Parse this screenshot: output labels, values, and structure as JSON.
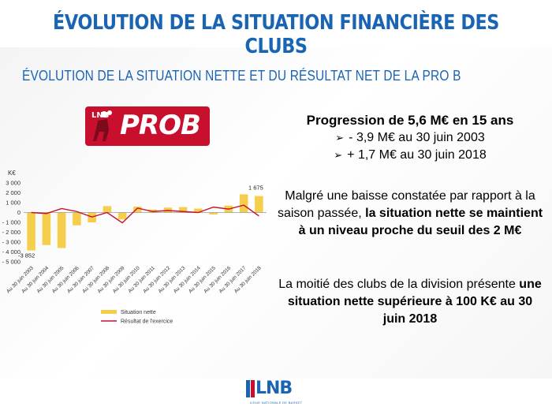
{
  "slide": {
    "title": "ÉVOLUTION DE LA SITUATION FINANCIÈRE DES CLUBS",
    "subtitle": "ÉVOLUTION DE LA SITUATION NETTE ET DU RÉSULTAT NET DE LA PRO B"
  },
  "logo": {
    "small": "LNB",
    "text": "PROB"
  },
  "text_blocks": {
    "headline": "Progression de 5,6 M€ en 15 ans",
    "bullet1": "- 3,9 M€ au 30 juin 2003",
    "bullet2": "+ 1,7 M€ au 30 juin 2018",
    "para1_part1": "Malgré une baisse constatée par rapport à la saison passée, ",
    "para1_bold": "la situation nette se maintient à un niveau proche du seuil des 2 M€",
    "para2_part1": "La moitié des clubs de la division présente ",
    "para2_bold": "une situation nette supérieure à 100 K€ au 30 juin 2018"
  },
  "footer": {
    "logo": "LNB",
    "tagline": "LIGUE NATIONALE DE BASKET"
  },
  "colors": {
    "title_blue": "#1a64b4",
    "bar_yellow": "#f5cf4c",
    "line_red": "#c8102e",
    "logo_red": "#c8102e"
  },
  "chart_data": {
    "type": "bar",
    "ylabel": "K€",
    "ylim": [
      -5000,
      3000
    ],
    "yticks": [
      3000,
      2000,
      1000,
      0,
      -1000,
      -2000,
      -3000,
      -4000,
      -5000
    ],
    "ytick_labels": [
      "3 000",
      "2 000",
      "1 000",
      "0",
      "- 1 000",
      "- 2 000",
      "- 3 000",
      "- 4 000",
      "- 5 000"
    ],
    "categories": [
      "Au 30 juin 2003",
      "Au 30 juin 2004",
      "Au 30 juin 2005",
      "Au 30 juin 2006",
      "Au 30 juin 2007",
      "Au 30 juin 2008",
      "Au 30 juin 2009",
      "Au 30 juin 2010",
      "Au 30 juin 2011",
      "Au 30 juin 2012",
      "Au 30 juin 2013",
      "Au 30 juin 2014",
      "Au 30 juin 2015",
      "Au 30 juin 2016",
      "Au 30 juin 2017",
      "Au 30 juin 2018"
    ],
    "series": [
      {
        "name": "Situation nette",
        "type": "bar",
        "color": "#f5cf4c",
        "values": [
          -3852,
          -3300,
          -3600,
          -1300,
          -1000,
          650,
          -700,
          600,
          300,
          500,
          550,
          400,
          -200,
          700,
          1850,
          1675
        ]
      },
      {
        "name": "Résultat de l'exercice",
        "type": "line",
        "color": "#c8102e",
        "values": [
          0,
          -100,
          400,
          100,
          -450,
          0,
          -1050,
          450,
          100,
          200,
          100,
          0,
          550,
          350,
          750,
          -350
        ]
      }
    ],
    "data_labels": [
      {
        "category": "Au 30 juin 2003",
        "text": "-3 852"
      },
      {
        "category": "Au 30 juin 2018",
        "text": "1 675"
      }
    ],
    "legend": {
      "position": "bottom-left"
    },
    "grid": false
  }
}
